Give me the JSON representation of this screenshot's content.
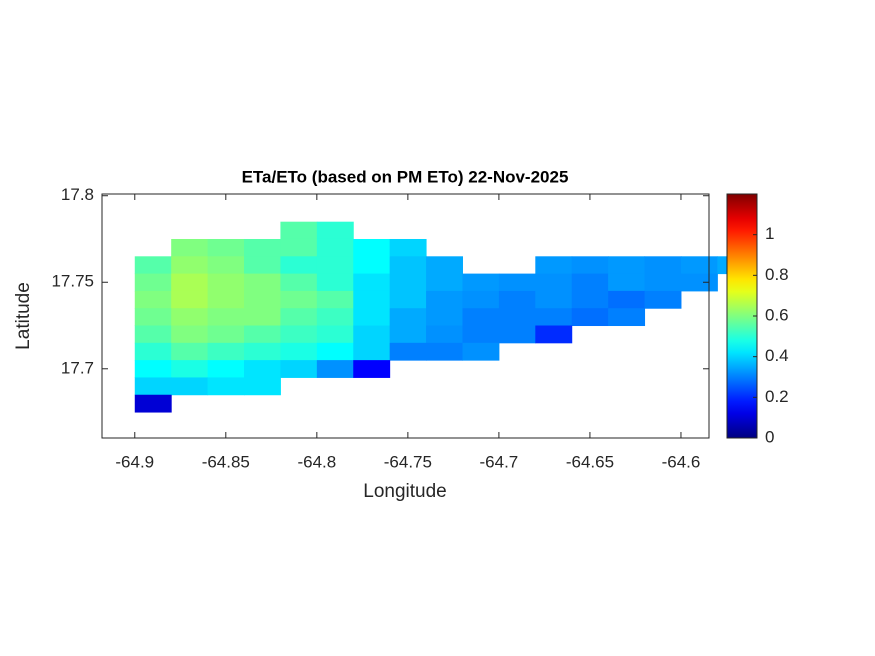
{
  "chart_data": {
    "type": "heatmap",
    "title": "ETa/ETo (based on PM ETo) 22-Nov-2025",
    "x_label": "Longitude",
    "y_label": "Latitude",
    "colormap": "jet",
    "x": [
      -64.89,
      -64.87,
      -64.85,
      -64.83,
      -64.81,
      -64.79,
      -64.77,
      -64.75,
      -64.73,
      -64.71,
      -64.69,
      -64.67,
      -64.65,
      -64.63,
      -64.61,
      -64.59,
      -64.57
    ],
    "y": [
      17.78,
      17.77,
      17.76,
      17.75,
      17.74,
      17.73,
      17.72,
      17.71,
      17.7,
      17.69,
      17.68
    ],
    "values": [
      [
        null,
        null,
        null,
        null,
        0.55,
        0.5,
        null,
        null,
        null,
        null,
        null,
        null,
        null,
        null,
        null,
        null,
        null
      ],
      [
        null,
        0.6,
        0.58,
        0.55,
        0.55,
        0.5,
        0.45,
        0.4,
        null,
        null,
        null,
        null,
        null,
        null,
        null,
        null,
        null
      ],
      [
        0.55,
        0.62,
        0.6,
        0.55,
        0.5,
        0.5,
        0.45,
        0.38,
        0.35,
        null,
        null,
        0.33,
        0.32,
        0.33,
        0.32,
        0.33,
        0.35
      ],
      [
        0.58,
        0.65,
        0.62,
        0.6,
        0.55,
        0.5,
        0.42,
        0.38,
        0.35,
        0.33,
        0.32,
        0.32,
        0.3,
        0.33,
        0.32,
        0.32,
        null
      ],
      [
        0.6,
        0.65,
        0.62,
        0.6,
        0.58,
        0.55,
        0.42,
        0.38,
        0.33,
        0.32,
        0.3,
        0.32,
        0.3,
        0.28,
        0.3,
        null,
        null
      ],
      [
        0.58,
        0.62,
        0.6,
        0.6,
        0.55,
        0.52,
        0.42,
        0.35,
        0.33,
        0.3,
        0.3,
        0.3,
        0.28,
        0.3,
        null,
        null,
        null
      ],
      [
        0.55,
        0.6,
        0.58,
        0.55,
        0.52,
        0.5,
        0.4,
        0.35,
        0.32,
        0.3,
        0.3,
        0.2,
        null,
        null,
        null,
        null,
        null
      ],
      [
        0.5,
        0.55,
        0.52,
        0.5,
        0.48,
        0.45,
        0.4,
        0.3,
        0.3,
        0.32,
        null,
        null,
        null,
        null,
        null,
        null,
        null
      ],
      [
        0.45,
        0.48,
        0.45,
        0.42,
        0.4,
        0.32,
        0.15,
        null,
        null,
        null,
        null,
        null,
        null,
        null,
        null,
        null,
        null
      ],
      [
        0.4,
        0.4,
        0.42,
        0.42,
        null,
        null,
        null,
        null,
        null,
        null,
        null,
        null,
        null,
        null,
        null,
        null,
        null
      ],
      [
        0.1,
        null,
        null,
        null,
        null,
        null,
        null,
        null,
        null,
        null,
        null,
        null,
        null,
        null,
        null,
        null,
        null
      ]
    ],
    "xlim": [
      -64.918,
      -64.5846
    ],
    "ylim": [
      17.66,
      17.801
    ],
    "xticks": [
      -64.9,
      -64.85,
      -64.8,
      -64.75,
      -64.7,
      -64.65,
      -64.6
    ],
    "yticks": [
      17.7,
      17.75,
      17.8
    ],
    "clim": [
      0,
      1.2
    ],
    "cticks": [
      0,
      0.2,
      0.4,
      0.6,
      0.8,
      1
    ]
  }
}
